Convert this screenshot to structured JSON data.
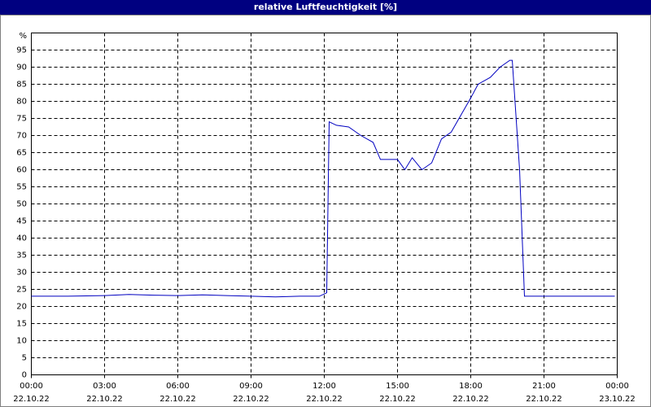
{
  "chart_data": {
    "type": "line",
    "title": "relative Luftfeuchtigkeit [%]",
    "y_unit": "%",
    "x": [
      0,
      1.5,
      3,
      4,
      5,
      6,
      7,
      8,
      9,
      10,
      11,
      11.8,
      12.1,
      12.2,
      12.5,
      13,
      13.5,
      14,
      14.3,
      15,
      15.3,
      15.6,
      16,
      16.4,
      16.8,
      17.2,
      17.6,
      18,
      18.3,
      18.8,
      19.2,
      19.6,
      19.7,
      20,
      20.2,
      23.9
    ],
    "values": [
      23,
      23,
      23.2,
      23.5,
      23.3,
      23.2,
      23.4,
      23.2,
      23,
      22.8,
      23,
      23,
      24,
      74,
      73,
      72.5,
      70,
      68,
      63,
      63,
      60,
      63.5,
      60,
      62,
      69,
      71,
      76,
      81,
      85,
      87,
      90,
      92,
      92,
      60,
      23,
      23
    ],
    "color": "#0000c0",
    "xlim": [
      0,
      24
    ],
    "xticks": [
      {
        "value": 0,
        "label": "00:00"
      },
      {
        "value": 3,
        "label": "03:00"
      },
      {
        "value": 6,
        "label": "06:00"
      },
      {
        "value": 9,
        "label": "09:00"
      },
      {
        "value": 12,
        "label": "12:00"
      },
      {
        "value": 15,
        "label": "15:00"
      },
      {
        "value": 18,
        "label": "18:00"
      },
      {
        "value": 21,
        "label": "21:00"
      },
      {
        "value": 24,
        "label": "00:00"
      }
    ],
    "xtick_dates": [
      "22.10.22",
      "22.10.22",
      "22.10.22",
      "22.10.22",
      "22.10.22",
      "22.10.22",
      "22.10.22",
      "22.10.22",
      "23.10.22"
    ],
    "ylim": [
      0,
      100
    ],
    "yticks": [
      0,
      5,
      10,
      15,
      20,
      25,
      30,
      35,
      40,
      45,
      50,
      55,
      60,
      65,
      70,
      75,
      80,
      85,
      90,
      95
    ],
    "grid": true
  }
}
